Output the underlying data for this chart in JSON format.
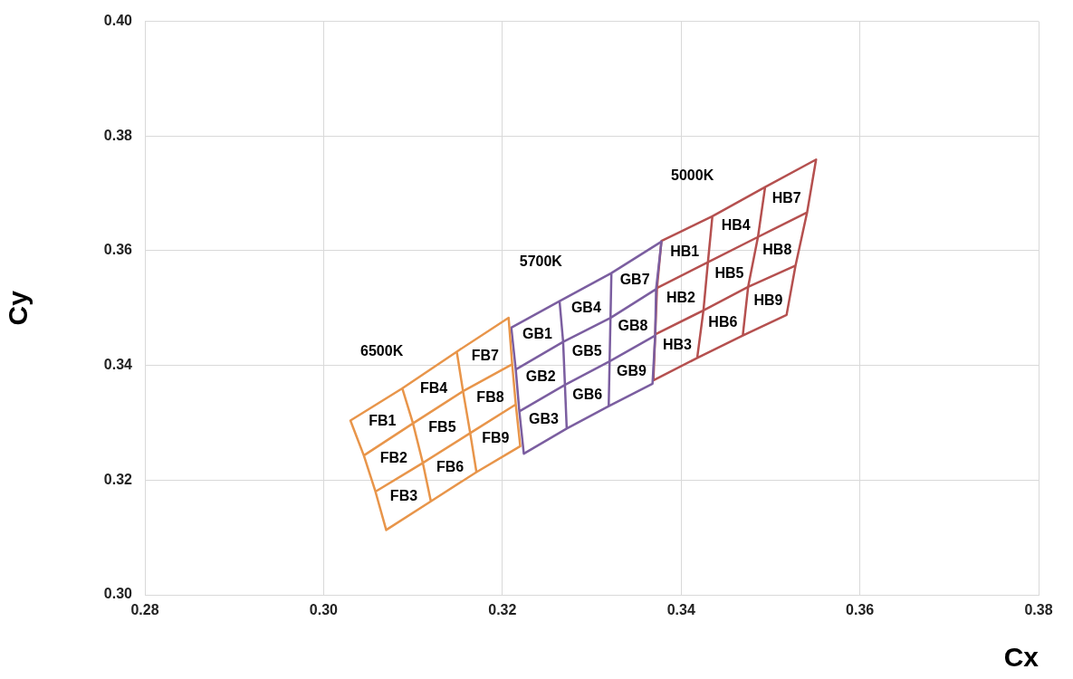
{
  "chart_data": {
    "type": "line",
    "xlabel": "Cx",
    "ylabel": "Cy",
    "xlim": [
      0.28,
      0.38
    ],
    "ylim": [
      0.3,
      0.4
    ],
    "xticks": [
      {
        "value": 0.28,
        "label": "0.28"
      },
      {
        "value": 0.3,
        "label": "0.30"
      },
      {
        "value": 0.32,
        "label": "0.32"
      },
      {
        "value": 0.34,
        "label": "0.34"
      },
      {
        "value": 0.36,
        "label": "0.36"
      },
      {
        "value": 0.38,
        "label": "0.38"
      }
    ],
    "yticks": [
      {
        "value": 0.3,
        "label": "0.30"
      },
      {
        "value": 0.32,
        "label": "0.32"
      },
      {
        "value": 0.34,
        "label": "0.34"
      },
      {
        "value": 0.36,
        "label": "0.36"
      },
      {
        "value": 0.38,
        "label": "0.38"
      },
      {
        "value": 0.4,
        "label": "0.40"
      }
    ],
    "grid": true,
    "legend": false,
    "marker": "none",
    "line_style": "solid",
    "series": [
      {
        "color": "#e8954a",
        "x": [
          0.303,
          0.3045,
          0.3058,
          0.307,
          0.312,
          0.3111,
          0.31,
          0.3088,
          0.3149,
          0.3156,
          0.3164,
          0.3171,
          0.322,
          0.3215,
          0.3211,
          0.3207,
          0.3149,
          0.3088,
          0.303,
          0.3045,
          0.31,
          0.3156,
          0.3211,
          0.3215,
          0.3164,
          0.3111,
          0.3058,
          0.307,
          0.312,
          0.3171,
          0.322
        ],
        "values": [
          0.3304,
          0.3243,
          0.318,
          0.3113,
          0.3163,
          0.323,
          0.3299,
          0.336,
          0.3424,
          0.3355,
          0.3282,
          0.3214,
          0.3259,
          0.3332,
          0.3402,
          0.3483,
          0.3424,
          0.336,
          0.3304,
          0.3243,
          0.3299,
          0.3355,
          0.3402,
          0.3332,
          0.3282,
          0.323,
          0.318,
          0.3113,
          0.3163,
          0.3214,
          0.3259
        ]
      },
      {
        "color": "#7b5ea0",
        "x": [
          0.321,
          0.3215,
          0.3219,
          0.3224,
          0.3272,
          0.327,
          0.3268,
          0.3264,
          0.3322,
          0.3321,
          0.332,
          0.3319,
          0.3368,
          0.3371,
          0.3372,
          0.3378,
          0.3322,
          0.3264,
          0.321,
          0.3215,
          0.3268,
          0.3321,
          0.3372,
          0.3371,
          0.332,
          0.327,
          0.3219,
          0.3224,
          0.3272,
          0.3319,
          0.3368
        ],
        "values": [
          0.3466,
          0.3393,
          0.332,
          0.3246,
          0.329,
          0.3366,
          0.3441,
          0.3512,
          0.3561,
          0.3483,
          0.3407,
          0.3329,
          0.3368,
          0.3452,
          0.3533,
          0.3616,
          0.3561,
          0.3512,
          0.3466,
          0.3393,
          0.3441,
          0.3483,
          0.3533,
          0.3452,
          0.3407,
          0.3366,
          0.332,
          0.3246,
          0.329,
          0.3329,
          0.3368
        ]
      },
      {
        "color": "#b5504f",
        "x": [
          0.3378,
          0.3373,
          0.3371,
          0.3369,
          0.3418,
          0.3425,
          0.343,
          0.3435,
          0.3494,
          0.3486,
          0.3475,
          0.3469,
          0.3518,
          0.3528,
          0.3541,
          0.3551,
          0.3494,
          0.3435,
          0.3378,
          0.3373,
          0.343,
          0.3486,
          0.3541,
          0.3528,
          0.3475,
          0.3425,
          0.3371,
          0.3369,
          0.3418,
          0.3469,
          0.3518
        ],
        "values": [
          0.3617,
          0.3535,
          0.3454,
          0.3374,
          0.3413,
          0.3496,
          0.358,
          0.366,
          0.3711,
          0.3624,
          0.3537,
          0.3452,
          0.3488,
          0.3574,
          0.3667,
          0.3759,
          0.3711,
          0.366,
          0.3617,
          0.3535,
          0.358,
          0.3624,
          0.3667,
          0.3574,
          0.3537,
          0.3496,
          0.3454,
          0.3374,
          0.3413,
          0.3452,
          0.3488
        ]
      }
    ],
    "annotations": [
      "6500K",
      "5700K",
      "5000K",
      "FB1",
      "FB2",
      "FB3",
      "FB4",
      "FB5",
      "FB6",
      "FB7",
      "FB8",
      "FB9",
      "GB1",
      "GB2",
      "GB3",
      "GB4",
      "GB5",
      "GB6",
      "GB7",
      "GB8",
      "GB9",
      "HB1",
      "HB2",
      "HB3",
      "HB4",
      "HB5",
      "HB6",
      "HB7",
      "HB8",
      "HB9"
    ]
  }
}
